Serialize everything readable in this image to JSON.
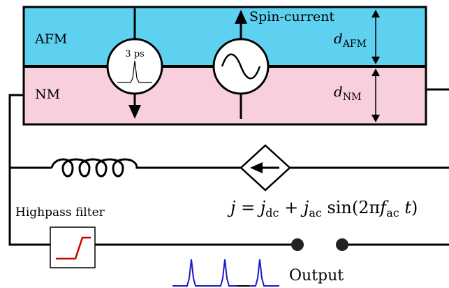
{
  "layers": {
    "afm": {
      "label": "AFM",
      "thickness_symbol": "d",
      "thickness_sub": "AFM",
      "color": "#5ed0f0"
    },
    "nm": {
      "label": "NM",
      "thickness_symbol": "d",
      "thickness_sub": "NM",
      "color": "#f8d0dc"
    }
  },
  "spin_current_label": "Spin-current",
  "pulse_source": {
    "label": "3 ps"
  },
  "current_equation": {
    "lhs": "j",
    "eq": " = ",
    "j1": "j",
    "j1_sub": "dc",
    "plus": " + ",
    "j2": "j",
    "j2_sub": "ac",
    "sin": " sin",
    "open": "(2π",
    "f": "f",
    "f_sub": "ac",
    "t": "t",
    "close": ")"
  },
  "filter_label": "Highpass filter",
  "output_label": "Output",
  "colors": {
    "wire": "#000000",
    "filter_curve": "#cc0000",
    "output_pulses": "#1a1acc"
  },
  "icons": [
    "ac-source-icon",
    "pulse-source-icon",
    "inductor-icon",
    "dependent-current-source-icon",
    "highpass-filter-icon",
    "output-terminal-icon"
  ]
}
